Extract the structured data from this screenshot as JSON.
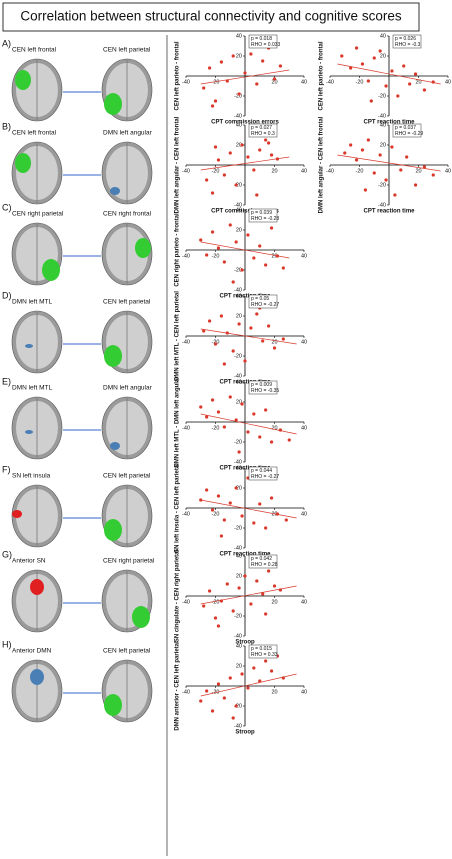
{
  "title": "Correlation between structural connectivity and cognitive scores",
  "panels": [
    {
      "label": "A)",
      "left": "CEN left frontal",
      "right": "CEN left parietal"
    },
    {
      "label": "B)",
      "left": "CEN left frontal",
      "right": "DMN left angular"
    },
    {
      "label": "C)",
      "left": "CEN right parietal",
      "right": "CEN right frontal"
    },
    {
      "label": "D)",
      "left": "DMN left MTL",
      "right": "CEN left parietal"
    },
    {
      "label": "E)",
      "left": "DMN left MTL",
      "right": "DMN left angular"
    },
    {
      "label": "F)",
      "left": "SN left insula",
      "right": "CEN left parietal"
    },
    {
      "label": "G)",
      "left": "Anterior SN",
      "right": "CEN right parietal"
    },
    {
      "label": "H)",
      "left": "Anterior DMN",
      "right": "CEN left parietal"
    }
  ],
  "chart_data": [
    {
      "type": "scatter",
      "y_label": "CEN left parieto - frontal",
      "x_label": "CPT commission errors",
      "annotation": [
        "p = 0.018",
        "RHO = 0.033"
      ],
      "color": "#d9382a",
      "xlim": [
        -40,
        40
      ],
      "ylim": [
        -40,
        40
      ],
      "xticks": [
        -40,
        -20,
        20,
        40
      ],
      "yticks": [
        40,
        20,
        -20,
        -40
      ],
      "x": [
        -28,
        -24,
        -20,
        -16,
        -12,
        -8,
        -4,
        0,
        4,
        8,
        12,
        16,
        20,
        24,
        -22,
        10
      ],
      "y": [
        -12,
        8,
        -25,
        14,
        -5,
        20,
        -18,
        3,
        22,
        -8,
        15,
        28,
        -3,
        10,
        -30,
        30
      ],
      "fit": {
        "x": [
          -30,
          30
        ],
        "y": [
          -8,
          6
        ]
      }
    },
    {
      "type": "scatter",
      "y_label": "CEN left parieto - frontal",
      "x_label": "CPT reaction time",
      "annotation": [
        "p = 0.026",
        "RHO = -0.3"
      ],
      "color": "#d9382a",
      "xlim": [
        -40,
        40
      ],
      "ylim": [
        -40,
        40
      ],
      "xticks": [
        -40,
        -20,
        20,
        40
      ],
      "yticks": [
        40,
        20,
        -20,
        -40
      ],
      "x": [
        -32,
        -26,
        -22,
        -18,
        -14,
        -10,
        -6,
        -2,
        2,
        6,
        10,
        14,
        18,
        24,
        30,
        -12
      ],
      "y": [
        20,
        8,
        28,
        12,
        -5,
        18,
        25,
        -10,
        5,
        -20,
        10,
        -8,
        2,
        -14,
        -6,
        -25
      ],
      "fit": {
        "x": [
          -35,
          35
        ],
        "y": [
          12,
          -8
        ]
      }
    },
    {
      "type": "scatter",
      "y_label": "DMN left angular - CEN left frontal",
      "x_label": "CPT commission errors",
      "annotation": [
        "p = 0.027",
        "RHO = 0.3"
      ],
      "color": "#d9382a",
      "xlim": [
        -40,
        40
      ],
      "ylim": [
        -40,
        40
      ],
      "xticks": [
        -40,
        -20,
        20,
        40
      ],
      "yticks": [
        40,
        20,
        -20,
        -40
      ],
      "x": [
        -26,
        -22,
        -18,
        -14,
        -10,
        -6,
        -2,
        2,
        6,
        10,
        14,
        18,
        22,
        -20,
        8,
        16
      ],
      "y": [
        -15,
        -28,
        5,
        -10,
        12,
        -20,
        20,
        8,
        -5,
        15,
        25,
        10,
        6,
        18,
        -30,
        22
      ],
      "fit": {
        "x": [
          -30,
          30
        ],
        "y": [
          -5,
          8
        ]
      }
    },
    {
      "type": "scatter",
      "y_label": "DMN left angular - CEN left frontal",
      "x_label": "CPT reaction time",
      "annotation": [
        "p = 0.037",
        "RHO = -0.29"
      ],
      "color": "#d9382a",
      "xlim": [
        -40,
        40
      ],
      "ylim": [
        -40,
        40
      ],
      "xticks": [
        -40,
        -20,
        20,
        40
      ],
      "yticks": [
        40,
        20,
        -20,
        -40
      ],
      "x": [
        -30,
        -26,
        -22,
        -18,
        -14,
        -10,
        -6,
        -2,
        2,
        8,
        12,
        18,
        24,
        30,
        -16,
        4
      ],
      "y": [
        12,
        20,
        5,
        15,
        25,
        -8,
        10,
        -15,
        18,
        -5,
        8,
        -20,
        -2,
        -10,
        -25,
        -30
      ],
      "fit": {
        "x": [
          -35,
          35
        ],
        "y": [
          10,
          -6
        ]
      }
    },
    {
      "type": "scatter",
      "y_label": "CEN right parieto - frontal",
      "x_label": "CPT reaction time",
      "annotation": [
        "p = 0.039",
        "RHO = -0.28"
      ],
      "color": "#d9382a",
      "xlim": [
        -40,
        40
      ],
      "ylim": [
        -40,
        40
      ],
      "xticks": [
        -40,
        -20,
        20,
        40
      ],
      "yticks": [
        40,
        20,
        -20,
        -40
      ],
      "x": [
        -30,
        -26,
        -22,
        -18,
        -14,
        -10,
        -6,
        -2,
        2,
        6,
        10,
        14,
        18,
        22,
        26,
        -8
      ],
      "y": [
        10,
        -5,
        18,
        2,
        -12,
        25,
        8,
        -20,
        15,
        -8,
        4,
        -15,
        22,
        -6,
        -18,
        -32
      ],
      "fit": {
        "x": [
          -30,
          30
        ],
        "y": [
          8,
          -8
        ]
      }
    },
    {
      "type": "scatter",
      "y_label": "DMN left MTL - CEN left parietal",
      "x_label": "CPT reaction time",
      "annotation": [
        "p = 0.05",
        "RHO = -0.27"
      ],
      "color": "#d9382a",
      "xlim": [
        -40,
        40
      ],
      "ylim": [
        -40,
        40
      ],
      "xticks": [
        -40,
        -20,
        20,
        40
      ],
      "yticks": [
        40,
        20,
        -20,
        -40
      ],
      "x": [
        -28,
        -24,
        -20,
        -16,
        -12,
        -8,
        -4,
        0,
        4,
        8,
        12,
        16,
        20,
        26,
        -14,
        10
      ],
      "y": [
        5,
        15,
        -8,
        20,
        3,
        -15,
        12,
        -25,
        8,
        22,
        -5,
        10,
        -12,
        -3,
        -28,
        28
      ],
      "fit": {
        "x": [
          -30,
          35
        ],
        "y": [
          7,
          -8
        ]
      }
    },
    {
      "type": "scatter",
      "y_label": "DMN left MTL - DMN left angular",
      "x_label": "CPT reaction time",
      "annotation": [
        "p = 0.009",
        "RHO = -0.35"
      ],
      "color": "#d9382a",
      "xlim": [
        -40,
        40
      ],
      "ylim": [
        -40,
        40
      ],
      "xticks": [
        -40,
        -20,
        20,
        40
      ],
      "yticks": [
        40,
        20,
        -20,
        -40
      ],
      "x": [
        -30,
        -26,
        -22,
        -18,
        -14,
        -10,
        -6,
        -2,
        2,
        6,
        10,
        14,
        18,
        24,
        30,
        -4
      ],
      "y": [
        15,
        5,
        22,
        10,
        -5,
        25,
        2,
        18,
        -10,
        8,
        -15,
        12,
        -20,
        -8,
        -18,
        -30
      ],
      "fit": {
        "x": [
          -30,
          35
        ],
        "y": [
          8,
          -12
        ]
      }
    },
    {
      "type": "scatter",
      "y_label": "SN left insula - CEN left parietal",
      "x_label": "CPT reaction time",
      "annotation": [
        "p = 0.044",
        "RHO = -0.27"
      ],
      "color": "#d9382a",
      "xlim": [
        -40,
        40
      ],
      "ylim": [
        -40,
        40
      ],
      "xticks": [
        -40,
        -20,
        20,
        40
      ],
      "yticks": [
        40,
        20,
        -20,
        -40
      ],
      "x": [
        -30,
        -26,
        -22,
        -18,
        -14,
        -10,
        -6,
        -2,
        2,
        6,
        10,
        14,
        18,
        22,
        28,
        -16
      ],
      "y": [
        8,
        18,
        -2,
        12,
        -12,
        5,
        20,
        -8,
        30,
        -15,
        4,
        -20,
        10,
        -6,
        -12,
        -28
      ],
      "fit": {
        "x": [
          -30,
          35
        ],
        "y": [
          8,
          -10
        ]
      }
    },
    {
      "type": "scatter",
      "y_label": "SN cingulate - CEN right parietal",
      "x_label": "Stroop",
      "annotation": [
        "p = 0.042",
        "RHO = 0.28"
      ],
      "color": "#d9382a",
      "xlim": [
        -40,
        40
      ],
      "ylim": [
        -40,
        40
      ],
      "xticks": [
        -40,
        -20,
        20,
        40
      ],
      "yticks": [
        40,
        20,
        -20,
        -40
      ],
      "x": [
        -28,
        -24,
        -20,
        -16,
        -12,
        -8,
        -4,
        0,
        4,
        8,
        12,
        16,
        20,
        24,
        -18,
        14
      ],
      "y": [
        -10,
        5,
        -22,
        -5,
        12,
        -15,
        8,
        20,
        -8,
        15,
        2,
        25,
        10,
        6,
        -30,
        -18
      ],
      "fit": {
        "x": [
          -30,
          35
        ],
        "y": [
          -8,
          10
        ]
      }
    },
    {
      "type": "scatter",
      "y_label": "DMN anterior - CEN left parietal",
      "x_label": "Stroop",
      "annotation": [
        "p = 0.015",
        "RHO = 0.33"
      ],
      "color": "#d9382a",
      "xlim": [
        -40,
        40
      ],
      "ylim": [
        -40,
        40
      ],
      "xticks": [
        -40,
        -20,
        20,
        40
      ],
      "yticks": [
        40,
        20,
        -20,
        -40
      ],
      "x": [
        -30,
        -26,
        -22,
        -18,
        -14,
        -10,
        -6,
        -2,
        2,
        6,
        10,
        14,
        18,
        22,
        26,
        -8
      ],
      "y": [
        -15,
        -5,
        -25,
        2,
        -12,
        8,
        -20,
        12,
        -2,
        18,
        5,
        25,
        15,
        30,
        8,
        -32
      ],
      "fit": {
        "x": [
          -30,
          35
        ],
        "y": [
          -10,
          12
        ]
      }
    }
  ]
}
